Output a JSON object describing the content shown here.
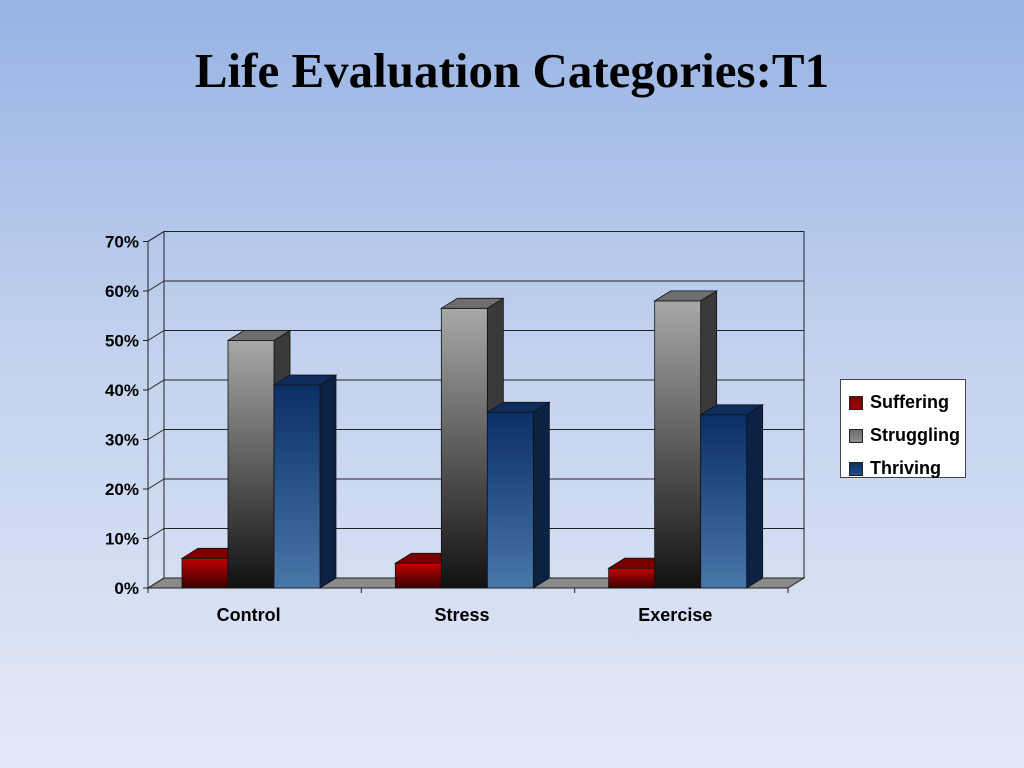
{
  "slide": {
    "title": "Life Evaluation Categories:T1"
  },
  "chart_data": {
    "type": "bar",
    "title": "",
    "xlabel": "",
    "ylabel": "",
    "categories": [
      "Control",
      "Stress",
      "Exercise"
    ],
    "series": [
      {
        "name": "Suffering",
        "values": [
          6,
          5,
          4
        ],
        "color": "#a50000"
      },
      {
        "name": "Struggling",
        "values": [
          50,
          56.5,
          58
        ],
        "color": "#8c8c8c"
      },
      {
        "name": "Thriving",
        "values": [
          41,
          35.5,
          35
        ],
        "color": "#1c4e8a"
      }
    ],
    "ylim": [
      0,
      70
    ],
    "yticks": [
      "0%",
      "10%",
      "20%",
      "30%",
      "40%",
      "50%",
      "60%",
      "70%"
    ],
    "grid": true,
    "legend": "right",
    "style": "3d-clustered"
  }
}
